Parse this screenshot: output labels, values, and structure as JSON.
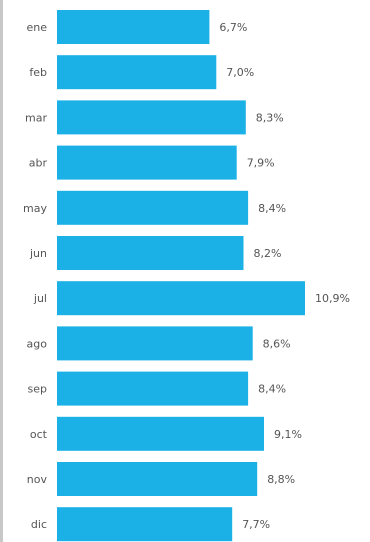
{
  "chart_data": {
    "type": "bar",
    "orientation": "horizontal",
    "categories": [
      "ene",
      "feb",
      "mar",
      "abr",
      "may",
      "jun",
      "jul",
      "ago",
      "sep",
      "oct",
      "nov",
      "dic"
    ],
    "values": [
      6.7,
      7.0,
      8.3,
      7.9,
      8.4,
      8.2,
      10.9,
      8.6,
      8.4,
      9.1,
      8.8,
      7.7
    ],
    "value_labels": [
      "6,7%",
      "7,0%",
      "8,3%",
      "7,9%",
      "8,4%",
      "8,2%",
      "10,9%",
      "8,6%",
      "8,4%",
      "9,1%",
      "8,8%",
      "7,7%"
    ],
    "bar_color": "#1bb1e6",
    "left_border_color": "#c8c8c8",
    "grid": false,
    "legend": "none",
    "title": "",
    "xlabel": "",
    "ylabel": ""
  }
}
